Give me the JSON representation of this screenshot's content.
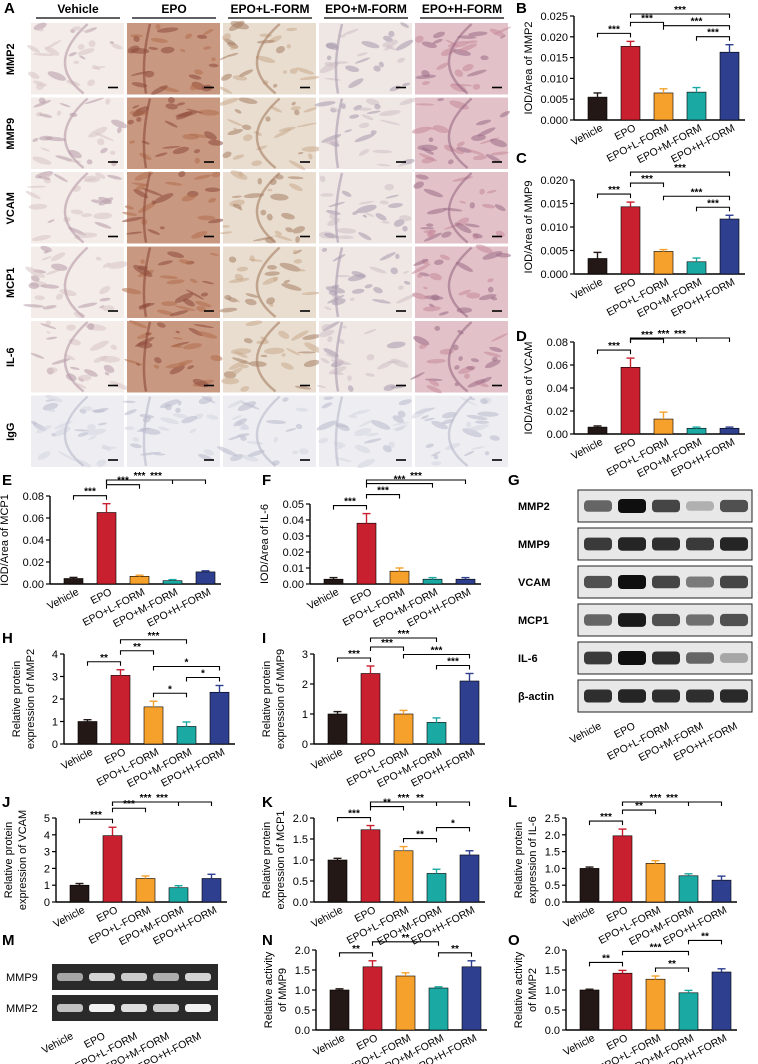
{
  "figure": {
    "panel_letters": [
      "A",
      "B",
      "C",
      "D",
      "E",
      "F",
      "G",
      "H",
      "I",
      "J",
      "K",
      "L",
      "M",
      "N",
      "O"
    ]
  },
  "micrographs": {
    "columns": [
      "Vehicle",
      "EPO",
      "EPO+L-FORM",
      "EPO+M-FORM",
      "EPO+H-FORM"
    ],
    "rows": [
      "MMP2",
      "MMP9",
      "VCAM",
      "MCP1",
      "IL-6",
      "IgG"
    ]
  },
  "colors": {
    "bars": [
      "#231815",
      "#c8202f",
      "#f5a12c",
      "#1aa9a3",
      "#2e3f8f"
    ]
  },
  "chart_data": [
    {
      "id": "B",
      "type": "bar",
      "categories": [
        "Vehicle",
        "EPO",
        "EPO+L-FORM",
        "EPO+M-FORM",
        "EPO+H-FORM"
      ],
      "values": [
        0.0055,
        0.0177,
        0.0065,
        0.0067,
        0.0163
      ],
      "errors": [
        0.001,
        0.0012,
        0.001,
        0.0011,
        0.0018
      ],
      "ylabel": "IOD/Area of MMP2",
      "ylim": [
        0,
        0.025
      ],
      "yticks": [
        "0.000",
        "0.005",
        "0.010",
        "0.015",
        "0.020",
        "0.025"
      ],
      "brackets": [
        {
          "a": 0,
          "b": 1,
          "label": "***"
        },
        {
          "a": 1,
          "b": 2,
          "label": "***"
        },
        {
          "a": 3,
          "b": 4,
          "label": "***"
        },
        {
          "a": 2,
          "b": 4,
          "label": "***"
        },
        {
          "a": 1,
          "b": 4,
          "label": "***"
        }
      ]
    },
    {
      "id": "C",
      "type": "bar",
      "categories": [
        "Vehicle",
        "EPO",
        "EPO+L-FORM",
        "EPO+M-FORM",
        "EPO+H-FORM"
      ],
      "values": [
        0.0033,
        0.0143,
        0.0048,
        0.0026,
        0.0117
      ],
      "errors": [
        0.0013,
        0.001,
        0.0004,
        0.0008,
        0.0008
      ],
      "ylabel": "IOD/Area of MMP9",
      "ylim": [
        0,
        0.02
      ],
      "yticks": [
        "0.000",
        "0.005",
        "0.010",
        "0.015",
        "0.020"
      ],
      "brackets": [
        {
          "a": 0,
          "b": 1,
          "label": "***"
        },
        {
          "a": 1,
          "b": 2,
          "label": "***"
        },
        {
          "a": 3,
          "b": 4,
          "label": "***"
        },
        {
          "a": 2,
          "b": 4,
          "label": "***"
        },
        {
          "a": 1,
          "b": 4,
          "label": "***"
        }
      ]
    },
    {
      "id": "D",
      "type": "bar",
      "categories": [
        "Vehicle",
        "EPO",
        "EPO+L-FORM",
        "EPO+M-FORM",
        "EPO+H-FORM"
      ],
      "values": [
        0.006,
        0.058,
        0.013,
        0.005,
        0.005
      ],
      "errors": [
        0.001,
        0.008,
        0.006,
        0.001,
        0.001
      ],
      "ylabel": "IOD/Area of VCAM",
      "ylim": [
        0,
        0.08
      ],
      "yticks": [
        "0.00",
        "0.02",
        "0.04",
        "0.06",
        "0.08"
      ],
      "brackets": [
        {
          "a": 0,
          "b": 1,
          "label": "***"
        },
        {
          "a": 1,
          "b": 2,
          "label": "***"
        },
        {
          "a": 1,
          "b": 3,
          "label": "***"
        },
        {
          "a": 1,
          "b": 4,
          "label": "***"
        }
      ]
    },
    {
      "id": "E",
      "type": "bar",
      "categories": [
        "Vehicle",
        "EPO",
        "EPO+L-FORM",
        "EPO+M-FORM",
        "EPO+H-FORM"
      ],
      "values": [
        0.005,
        0.065,
        0.007,
        0.003,
        0.011
      ],
      "errors": [
        0.001,
        0.008,
        0.001,
        0.001,
        0.001
      ],
      "ylabel": "IOD/Area of MCP1",
      "ylim": [
        0,
        0.08
      ],
      "yticks": [
        "0.00",
        "0.02",
        "0.04",
        "0.06",
        "0.08"
      ],
      "brackets": [
        {
          "a": 0,
          "b": 1,
          "label": "***"
        },
        {
          "a": 1,
          "b": 2,
          "label": "***"
        },
        {
          "a": 1,
          "b": 3,
          "label": "***"
        },
        {
          "a": 1,
          "b": 4,
          "label": "***"
        }
      ]
    },
    {
      "id": "F",
      "type": "bar",
      "categories": [
        "Vehicle",
        "EPO",
        "EPO+L-FORM",
        "EPO+M-FORM",
        "EPO+H-FORM"
      ],
      "values": [
        0.003,
        0.038,
        0.008,
        0.003,
        0.003
      ],
      "errors": [
        0.001,
        0.006,
        0.002,
        0.001,
        0.001
      ],
      "ylabel": "IOD/Area of IL-6",
      "ylim": [
        0,
        0.05
      ],
      "yticks": [
        "0.00",
        "0.01",
        "0.02",
        "0.03",
        "0.04",
        "0.05"
      ],
      "brackets": [
        {
          "a": 0,
          "b": 1,
          "label": "***"
        },
        {
          "a": 1,
          "b": 2,
          "label": "***"
        },
        {
          "a": 1,
          "b": 3,
          "label": "***"
        },
        {
          "a": 1,
          "b": 4,
          "label": "***"
        }
      ]
    },
    {
      "id": "H",
      "type": "bar",
      "categories": [
        "Vehicle",
        "EPO",
        "EPO+L-FORM",
        "EPO+M-FORM",
        "EPO+H-FORM"
      ],
      "values": [
        1.0,
        3.05,
        1.65,
        0.78,
        2.3
      ],
      "errors": [
        0.08,
        0.25,
        0.25,
        0.2,
        0.3
      ],
      "ylabel": "Relative protein expression of  MMP2",
      "ylim": [
        0,
        4
      ],
      "yticks": [
        "0",
        "1",
        "2",
        "3",
        "4"
      ],
      "brackets": [
        {
          "a": 0,
          "b": 1,
          "label": "**"
        },
        {
          "a": 1,
          "b": 2,
          "label": "**"
        },
        {
          "a": 2,
          "b": 3,
          "label": "*"
        },
        {
          "a": 3,
          "b": 4,
          "label": "*"
        },
        {
          "a": 2,
          "b": 4,
          "label": "*"
        },
        {
          "a": 1,
          "b": 3,
          "label": "***"
        }
      ]
    },
    {
      "id": "I",
      "type": "bar",
      "categories": [
        "Vehicle",
        "EPO",
        "EPO+L-FORM",
        "EPO+M-FORM",
        "EPO+H-FORM"
      ],
      "values": [
        1.0,
        2.35,
        1.0,
        0.72,
        2.1
      ],
      "errors": [
        0.08,
        0.25,
        0.12,
        0.15,
        0.25
      ],
      "ylabel": "Relative protein expression of  MMP9",
      "ylim": [
        0,
        3
      ],
      "yticks": [
        "0",
        "1",
        "2",
        "3"
      ],
      "brackets": [
        {
          "a": 0,
          "b": 1,
          "label": "***"
        },
        {
          "a": 1,
          "b": 2,
          "label": "***"
        },
        {
          "a": 3,
          "b": 4,
          "label": "***"
        },
        {
          "a": 2,
          "b": 4,
          "label": "***"
        },
        {
          "a": 1,
          "b": 3,
          "label": "***"
        }
      ]
    },
    {
      "id": "J",
      "type": "bar",
      "categories": [
        "Vehicle",
        "EPO",
        "EPO+L-FORM",
        "EPO+M-FORM",
        "EPO+H-FORM"
      ],
      "values": [
        1.0,
        3.95,
        1.4,
        0.85,
        1.4
      ],
      "errors": [
        0.1,
        0.5,
        0.15,
        0.12,
        0.25
      ],
      "ylabel": "Relative protein expression of  VCAM",
      "ylim": [
        0,
        5
      ],
      "yticks": [
        "0",
        "1",
        "2",
        "3",
        "4",
        "5"
      ],
      "brackets": [
        {
          "a": 0,
          "b": 1,
          "label": "***"
        },
        {
          "a": 1,
          "b": 2,
          "label": "***"
        },
        {
          "a": 1,
          "b": 3,
          "label": "***"
        },
        {
          "a": 1,
          "b": 4,
          "label": "***"
        }
      ]
    },
    {
      "id": "K",
      "type": "bar",
      "categories": [
        "Vehicle",
        "EPO",
        "EPO+L-FORM",
        "EPO+M-FORM",
        "EPO+H-FORM"
      ],
      "values": [
        1.0,
        1.72,
        1.22,
        0.68,
        1.12
      ],
      "errors": [
        0.04,
        0.1,
        0.1,
        0.1,
        0.1
      ],
      "ylabel": "Relative protein expression of  MCP1",
      "ylim": [
        0,
        2
      ],
      "yticks": [
        "0.0",
        "0.5",
        "1.0",
        "1.5",
        "2.0"
      ],
      "brackets": [
        {
          "a": 0,
          "b": 1,
          "label": "***"
        },
        {
          "a": 1,
          "b": 2,
          "label": "**"
        },
        {
          "a": 2,
          "b": 3,
          "label": "**"
        },
        {
          "a": 3,
          "b": 4,
          "label": "*"
        },
        {
          "a": 1,
          "b": 3,
          "label": "***"
        },
        {
          "a": 1,
          "b": 4,
          "label": "**"
        }
      ]
    },
    {
      "id": "L",
      "type": "bar",
      "categories": [
        "Vehicle",
        "EPO",
        "EPO+L-FORM",
        "EPO+M-FORM",
        "EPO+H-FORM"
      ],
      "values": [
        1.0,
        1.97,
        1.15,
        0.78,
        0.65
      ],
      "errors": [
        0.04,
        0.2,
        0.08,
        0.06,
        0.12
      ],
      "ylabel": "Relative protein expression of  IL-6",
      "ylim": [
        0,
        2.5
      ],
      "yticks": [
        "0.0",
        "0.5",
        "1.0",
        "1.5",
        "2.0",
        "2.5"
      ],
      "brackets": [
        {
          "a": 0,
          "b": 1,
          "label": "***"
        },
        {
          "a": 1,
          "b": 2,
          "label": "**"
        },
        {
          "a": 1,
          "b": 3,
          "label": "***"
        },
        {
          "a": 1,
          "b": 4,
          "label": "***"
        }
      ]
    },
    {
      "id": "N",
      "type": "bar",
      "categories": [
        "Vehicle",
        "EPO",
        "EPO+L-FORM",
        "EPO+M-FORM",
        "EPO+H-FORM"
      ],
      "values": [
        1.0,
        1.58,
        1.35,
        1.05,
        1.58
      ],
      "errors": [
        0.03,
        0.15,
        0.08,
        0.03,
        0.15
      ],
      "ylabel": "Relative activity of MMP9",
      "ylim": [
        0,
        2
      ],
      "yticks": [
        "0.0",
        "0.5",
        "1.0",
        "1.5",
        "2.0"
      ],
      "brackets": [
        {
          "a": 0,
          "b": 1,
          "label": "**"
        },
        {
          "a": 1,
          "b": 3,
          "label": "**"
        },
        {
          "a": 3,
          "b": 4,
          "label": "**"
        }
      ]
    },
    {
      "id": "O",
      "type": "bar",
      "categories": [
        "Vehicle",
        "EPO",
        "EPO+L-FORM",
        "EPO+M-FORM",
        "EPO+H-FORM"
      ],
      "values": [
        1.0,
        1.42,
        1.27,
        0.93,
        1.45
      ],
      "errors": [
        0.02,
        0.07,
        0.08,
        0.06,
        0.08
      ],
      "ylabel": "Relative activity of MMP2",
      "ylim": [
        0,
        2
      ],
      "yticks": [
        "0.0",
        "0.5",
        "1.0",
        "1.5",
        "2.0"
      ],
      "brackets": [
        {
          "a": 0,
          "b": 1,
          "label": "**"
        },
        {
          "a": 2,
          "b": 3,
          "label": "**"
        },
        {
          "a": 1,
          "b": 3,
          "label": "***"
        },
        {
          "a": 3,
          "b": 4,
          "label": "**"
        }
      ]
    }
  ],
  "western_blot": {
    "rows": [
      "MMP2",
      "MMP9",
      "VCAM",
      "MCP1",
      "IL-6",
      "β-actin"
    ],
    "intensities": [
      [
        0.6,
        1.0,
        0.75,
        0.25,
        0.7
      ],
      [
        0.8,
        0.9,
        0.85,
        0.8,
        0.9
      ],
      [
        0.7,
        1.0,
        0.75,
        0.5,
        0.75
      ],
      [
        0.6,
        0.95,
        0.7,
        0.55,
        0.7
      ],
      [
        0.8,
        1.0,
        0.85,
        0.6,
        0.3
      ],
      [
        0.85,
        0.9,
        0.85,
        0.85,
        0.88
      ]
    ],
    "lanes": [
      "Vehicle",
      "EPO",
      "EPO+L-FORM",
      "EPO+M-FORM",
      "EPO+H-FORM"
    ]
  },
  "zymogram": {
    "rows": [
      "MMP9",
      "MMP2"
    ],
    "intensities": [
      [
        0.55,
        0.8,
        0.75,
        0.6,
        0.8
      ],
      [
        0.7,
        0.95,
        0.85,
        0.75,
        0.95
      ]
    ],
    "lanes": [
      "Vehicle",
      "EPO",
      "EPO+L-FORM",
      "EPO+M-FORM",
      "EPO+H-FORM"
    ]
  }
}
